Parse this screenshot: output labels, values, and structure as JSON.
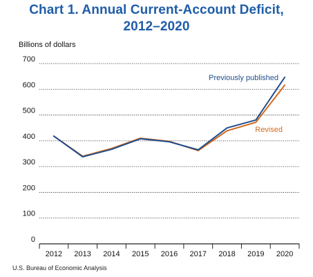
{
  "title_line1": "Chart 1. Annual Current-Account Deficit,",
  "title_line2": "2012–2020",
  "source": "U.S. Bureau of Economic Analysis",
  "colors": {
    "title": "#1f5da8",
    "previously_published": "#1f4e8c",
    "revised": "#d2691e",
    "grid": "#222222"
  },
  "chart_data": {
    "type": "line",
    "title": "Chart 1. Annual Current-Account Deficit, 2012–2020",
    "xlabel": "",
    "ylabel": "Billions of dollars",
    "ylim": [
      0,
      700
    ],
    "yticks": [
      0,
      100,
      200,
      300,
      400,
      500,
      600,
      700
    ],
    "grid": "horizontal dotted",
    "x": [
      "2012",
      "2013",
      "2014",
      "2015",
      "2016",
      "2017",
      "2018",
      "2019",
      "2020"
    ],
    "series": [
      {
        "name": "Previously published",
        "color": "#1f4e8c",
        "values": [
          418,
          338,
          367,
          408,
          396,
          365,
          450,
          481,
          647
        ]
      },
      {
        "name": "Revised",
        "color": "#d2691e",
        "values": [
          418,
          340,
          370,
          410,
          398,
          362,
          439,
          472,
          616
        ]
      }
    ]
  }
}
